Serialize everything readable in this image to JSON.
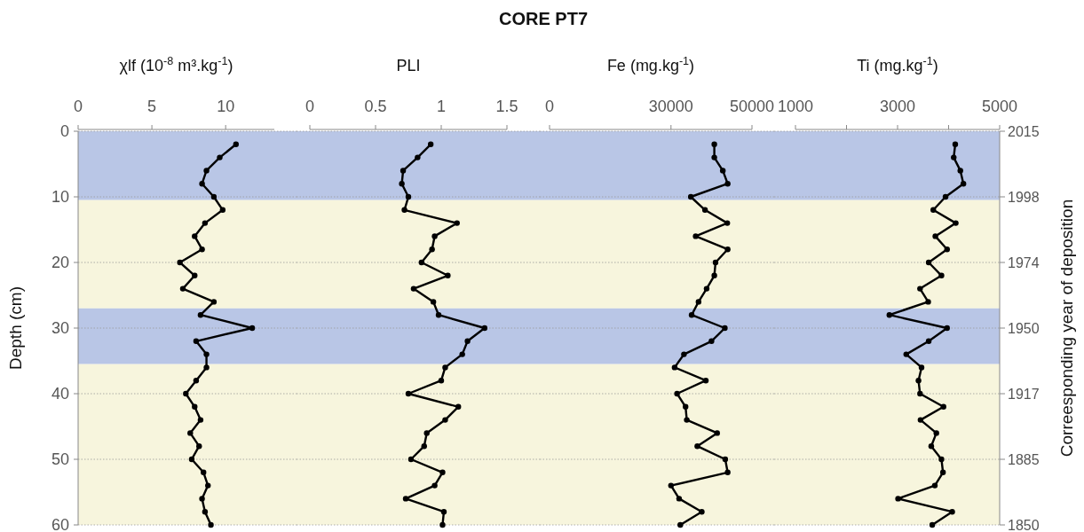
{
  "chart_data": [
    {
      "type": "line",
      "xlabel": "χlf (10$^{-8}$ m³.kg$^{-1}$)",
      "ylabel": "Depth (cm)",
      "orientation": "horizontal",
      "grid": "y",
      "marker": "circle",
      "line_style": "solid",
      "x": [
        2,
        4,
        6,
        8,
        10,
        12,
        14,
        16,
        18,
        20,
        22,
        24,
        26,
        28,
        30,
        32,
        34,
        36,
        38,
        40,
        42,
        44,
        46,
        48,
        50,
        52,
        54,
        56,
        58,
        60
      ],
      "series": [
        {
          "color": "#000000",
          "values": [
            10.7,
            9.6,
            8.7,
            8.4,
            9.2,
            9.8,
            8.6,
            7.9,
            8.4,
            6.9,
            7.9,
            7.1,
            9.2,
            8.3,
            11.8,
            8.0,
            8.7,
            8.7,
            8.0,
            7.3,
            7.9,
            8.3,
            7.6,
            8.2,
            7.7,
            8.5,
            8.8,
            8.4,
            8.6,
            9.0
          ]
        }
      ],
      "xlim": [
        0,
        13.3
      ],
      "xticks": [
        0,
        5,
        10
      ],
      "ylim": [
        60,
        0
      ],
      "yticks": [
        0,
        10,
        20,
        30,
        40,
        50,
        60
      ],
      "bands": [
        {
          "axis": "y",
          "from": 0,
          "to": 10.5,
          "color": "#b9c6e6"
        },
        {
          "axis": "y",
          "from": 10.5,
          "to": 27,
          "color": "#f7f5dd"
        },
        {
          "axis": "y",
          "from": 27,
          "to": 35.5,
          "color": "#b9c6e6"
        },
        {
          "axis": "y",
          "from": 35.5,
          "to": 60,
          "color": "#f7f5dd"
        }
      ]
    },
    {
      "type": "line",
      "xlabel": "PLI",
      "orientation": "horizontal",
      "grid": "y",
      "marker": "circle",
      "line_style": "solid",
      "tick_labels": "x",
      "x": [
        2,
        4,
        6,
        8,
        10,
        12,
        14,
        16,
        18,
        20,
        22,
        24,
        26,
        28,
        30,
        32,
        34,
        36,
        38,
        40,
        42,
        44,
        46,
        48,
        50,
        52,
        54,
        56,
        58,
        60
      ],
      "series": [
        {
          "color": "#000000",
          "values": [
            0.92,
            0.82,
            0.71,
            0.7,
            0.75,
            0.72,
            1.12,
            0.95,
            0.93,
            0.85,
            1.05,
            0.79,
            0.94,
            0.98,
            1.33,
            1.2,
            1.16,
            1.03,
            1.0,
            0.75,
            1.13,
            1.03,
            0.89,
            0.87,
            0.77,
            1.01,
            0.95,
            0.73,
            1.02,
            1.01
          ]
        }
      ],
      "xlim": [
        0,
        1.5
      ],
      "xticks": [
        0,
        0.5,
        1,
        1.5
      ],
      "ylim": [
        60,
        0
      ],
      "yticks": [
        0,
        10,
        20,
        30,
        40,
        50,
        60
      ],
      "bands": [
        {
          "axis": "y",
          "from": 0,
          "to": 10.5,
          "color": "#b9c6e6"
        },
        {
          "axis": "y",
          "from": 10.5,
          "to": 27,
          "color": "#f7f5dd"
        },
        {
          "axis": "y",
          "from": 27,
          "to": 35.5,
          "color": "#b9c6e6"
        },
        {
          "axis": "y",
          "from": 35.5,
          "to": 60,
          "color": "#f7f5dd"
        }
      ]
    },
    {
      "type": "line",
      "title": "CORE PT7",
      "xlabel": "Fe (mg.kg$^{-1}$)",
      "orientation": "horizontal",
      "grid": "y",
      "marker": "circle",
      "line_style": "solid",
      "tick_labels": "x",
      "x": [
        2,
        4,
        6,
        8,
        10,
        12,
        14,
        16,
        18,
        20,
        22,
        24,
        26,
        28,
        30,
        32,
        34,
        36,
        38,
        40,
        42,
        44,
        46,
        48,
        50,
        52,
        54,
        56,
        58,
        60
      ],
      "series": [
        {
          "color": "#000000",
          "values": [
            40700,
            40700,
            42800,
            44000,
            34900,
            38400,
            43900,
            36100,
            44000,
            41000,
            40700,
            38800,
            36800,
            35100,
            43300,
            40000,
            33200,
            30900,
            38600,
            31500,
            33600,
            33900,
            41400,
            36500,
            43400,
            44000,
            30000,
            32000,
            37600,
            32300
          ]
        }
      ],
      "xlim": [
        0,
        50000
      ],
      "xticks": [
        0,
        30000,
        50000
      ],
      "ylim": [
        60,
        0
      ],
      "yticks": [
        0,
        10,
        20,
        30,
        40,
        50,
        60
      ],
      "bands": [
        {
          "axis": "y",
          "from": 0,
          "to": 10.5,
          "color": "#b9c6e6"
        },
        {
          "axis": "y",
          "from": 10.5,
          "to": 27,
          "color": "#f7f5dd"
        },
        {
          "axis": "y",
          "from": 27,
          "to": 35.5,
          "color": "#b9c6e6"
        },
        {
          "axis": "y",
          "from": 35.5,
          "to": 60,
          "color": "#f7f5dd"
        }
      ]
    },
    {
      "type": "line",
      "xlabel": "Ti (mg.kg$^{-1}$)",
      "y2label": "Correesponding year of deposition",
      "orientation": "horizontal",
      "grid": "y",
      "marker": "circle",
      "line_style": "solid",
      "tick_labels": "x",
      "x": [
        2,
        4,
        6,
        8,
        10,
        12,
        14,
        16,
        18,
        20,
        22,
        24,
        26,
        28,
        30,
        32,
        34,
        36,
        38,
        40,
        42,
        44,
        46,
        48,
        50,
        52,
        54,
        56,
        58,
        60
      ],
      "series": [
        {
          "color": "#000000",
          "values": [
            4130,
            4100,
            4230,
            4290,
            3940,
            3700,
            4140,
            3740,
            3970,
            3610,
            3860,
            3440,
            3600,
            2840,
            3970,
            3610,
            3170,
            3470,
            3410,
            3440,
            3900,
            3450,
            3760,
            3660,
            3860,
            3890,
            3730,
            3010,
            4070,
            3680
          ]
        }
      ],
      "xlim": [
        1000,
        5000
      ],
      "xticks": [
        1000,
        {
          "value": 2000,
          "label": null
        },
        3000,
        {
          "value": 4000,
          "label": null
        },
        5000
      ],
      "ylim": [
        60,
        0
      ],
      "yticks": [
        0,
        10,
        20,
        30,
        40,
        50,
        60
      ],
      "annotations": [
        "2015",
        "1998",
        "1974",
        "1950",
        "1917",
        "1885",
        "1850"
      ],
      "bands": [
        {
          "axis": "y",
          "from": 0,
          "to": 10.5,
          "color": "#b9c6e6"
        },
        {
          "axis": "y",
          "from": 10.5,
          "to": 27,
          "color": "#f7f5dd"
        },
        {
          "axis": "y",
          "from": 27,
          "to": 35.5,
          "color": "#b9c6e6"
        },
        {
          "axis": "y",
          "from": 35.5,
          "to": 60,
          "color": "#f7f5dd"
        }
      ]
    }
  ]
}
